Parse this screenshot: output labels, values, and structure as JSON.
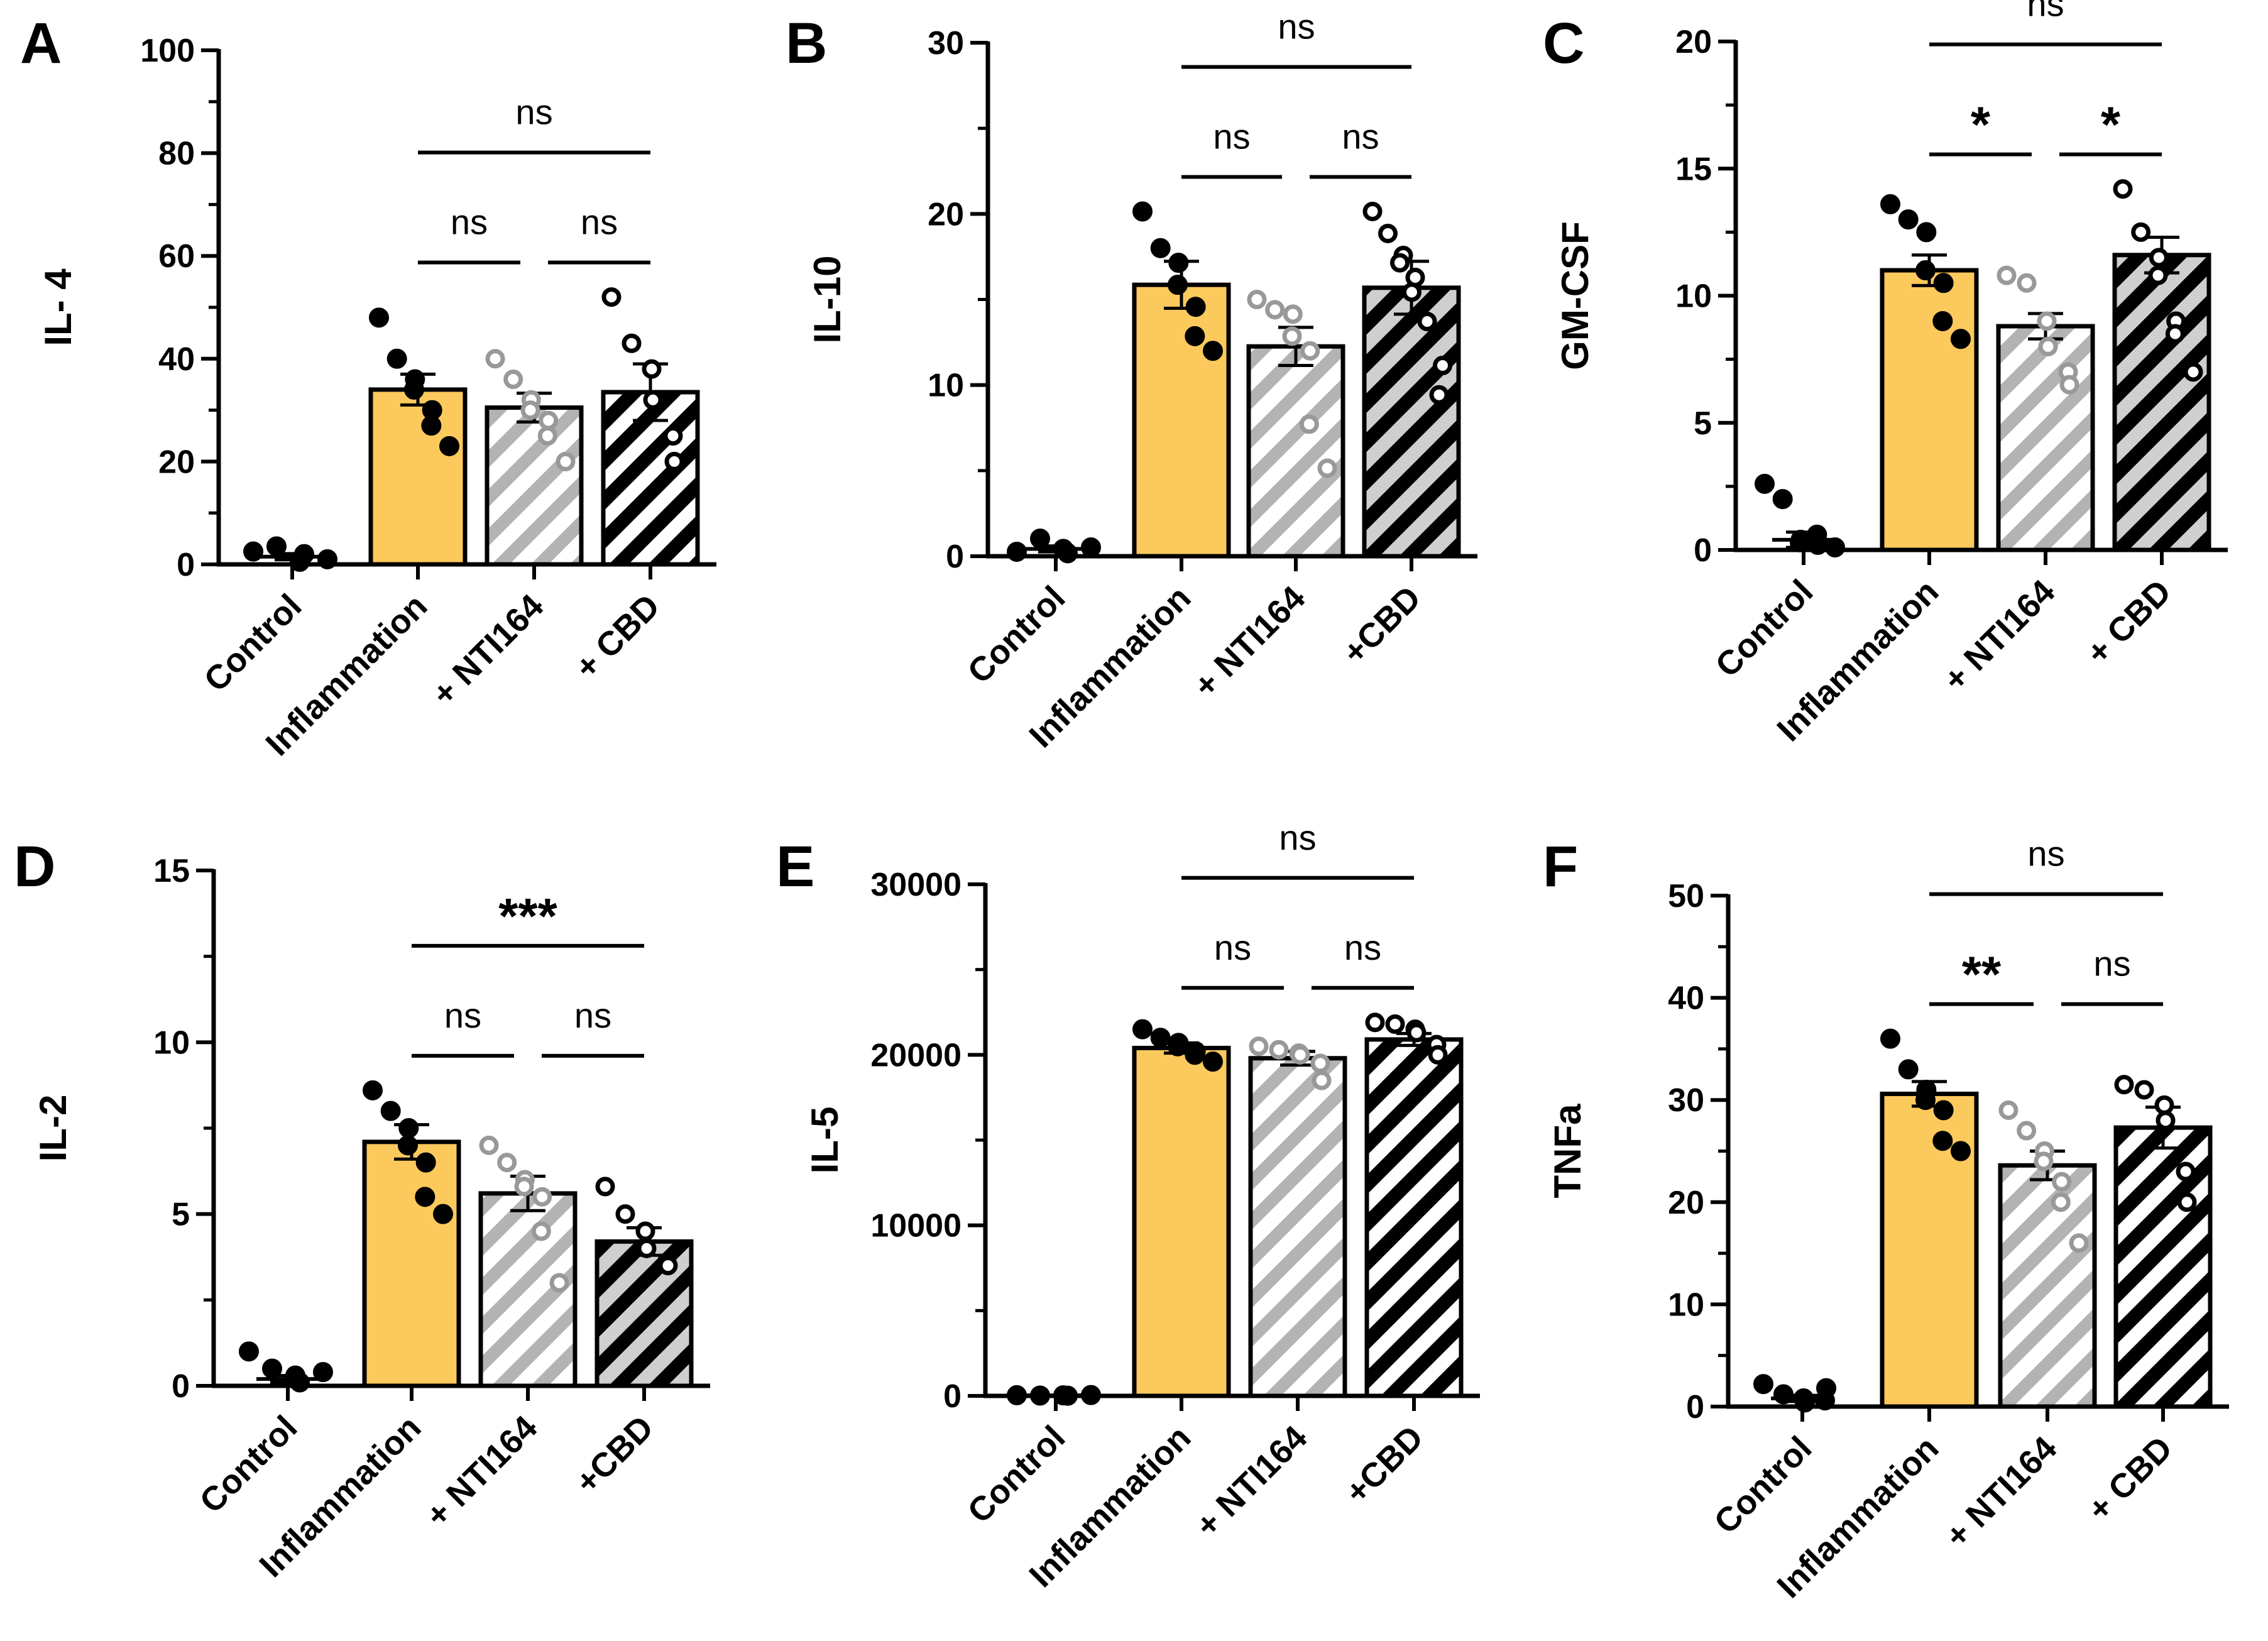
{
  "colors": {
    "inflammation_fill": "#fcc95d",
    "nti164_hatch": "#b3b3b3",
    "nti164_dots": "#999999",
    "cbd_hatch_dark": "#000000",
    "cbd_hatch_light": "#cfcfcf",
    "axis": "#000000"
  },
  "chart_data": [
    {
      "panel": "A",
      "type": "bar",
      "ylabel": "IL- 4",
      "ylim": [
        0,
        100
      ],
      "yticks": [
        "0",
        "20",
        "40",
        "60",
        "80",
        "100"
      ],
      "categories": [
        "Control",
        "Inflammation",
        "+ NTI164",
        "+ CBD"
      ],
      "values": [
        1.5,
        34,
        30.5,
        33.5
      ],
      "sem": [
        0.6,
        3,
        2.8,
        5.5
      ],
      "points": [
        [
          2.5,
          3.5,
          0.5,
          2,
          1
        ],
        [
          48,
          40,
          36,
          34,
          30,
          27,
          23
        ],
        [
          40,
          36,
          32,
          30,
          28,
          25,
          20
        ],
        [
          52,
          43,
          38,
          32,
          25,
          20
        ]
      ],
      "cbd_hatch": "dark",
      "significance": [
        {
          "from": 1,
          "to": 3,
          "label": "ns",
          "level": 2
        },
        {
          "from": 1,
          "to": 2,
          "label": "ns",
          "level": 1
        },
        {
          "from": 2,
          "to": 3,
          "label": "ns",
          "level": 1
        }
      ]
    },
    {
      "panel": "B",
      "type": "bar",
      "ylabel": "IL-10",
      "ylim": [
        0,
        35
      ],
      "yticks": [
        "0",
        "10",
        "20",
        "30"
      ],
      "categories": [
        "Control",
        "Inflammation",
        "+ NTI164",
        "+CBD"
      ],
      "values": [
        0.5,
        18.5,
        14.3,
        18.3
      ],
      "sem": [
        0.2,
        1.6,
        1.3,
        1.8
      ],
      "points": [
        [
          0.3,
          1.2,
          0.5,
          0.2,
          0.6
        ],
        [
          23.5,
          21,
          20,
          18.5,
          17,
          15,
          14
        ],
        [
          17.5,
          16.8,
          16.5,
          15,
          14,
          9,
          6
        ],
        [
          23.5,
          22,
          20.5,
          20,
          19,
          18,
          16,
          13,
          11
        ]
      ],
      "cbd_hatch": "light",
      "significance": [
        {
          "from": 1,
          "to": 3,
          "label": "ns",
          "level": 2
        },
        {
          "from": 1,
          "to": 2,
          "label": "ns",
          "level": 1
        },
        {
          "from": 2,
          "to": 3,
          "label": "ns",
          "level": 1
        }
      ]
    },
    {
      "panel": "C",
      "type": "bar",
      "ylabel": "GM-CSF",
      "ylim": [
        0,
        20
      ],
      "yticks": [
        "0",
        "5",
        "10",
        "15",
        "20"
      ],
      "categories": [
        "Control",
        "Inflammation",
        "+ NTI164",
        "+ CBD"
      ],
      "values": [
        0.4,
        11,
        8.8,
        11.6
      ],
      "sem": [
        0.3,
        0.6,
        0.5,
        0.7
      ],
      "points": [
        [
          2.6,
          2,
          0.4,
          0.3,
          0.2,
          0.6,
          0.1
        ],
        [
          13.6,
          13,
          12.5,
          11,
          10.5,
          9,
          8.3
        ],
        [
          10.8,
          10.5,
          9,
          8,
          7,
          6.5
        ],
        [
          14.2,
          12.5,
          11.5,
          10.8,
          9,
          8.5,
          7
        ]
      ],
      "cbd_hatch": "light",
      "significance": [
        {
          "from": 1,
          "to": 3,
          "label": "ns",
          "level": 2
        },
        {
          "from": 1,
          "to": 2,
          "label": "*",
          "level": 1
        },
        {
          "from": 2,
          "to": 3,
          "label": "*",
          "level": 1
        }
      ]
    },
    {
      "panel": "D",
      "type": "bar",
      "ylabel": "IL-2",
      "ylim": [
        0,
        15
      ],
      "yticks": [
        "0",
        "5",
        "10",
        "15"
      ],
      "categories": [
        "Control",
        "Inflammation",
        "+ NTI164",
        "+CBD"
      ],
      "values": [
        0.2,
        7.1,
        5.6,
        4.2
      ],
      "sem": [
        0.1,
        0.5,
        0.5,
        0.4
      ],
      "points": [
        [
          1,
          0.5,
          0.3,
          0.1,
          0.4
        ],
        [
          8.6,
          8,
          7.5,
          7,
          6.5,
          5.5,
          5
        ],
        [
          7,
          6.5,
          6,
          5.8,
          5.5,
          4.5,
          3
        ],
        [
          5.8,
          5,
          4.5,
          4,
          3.6,
          3.5
        ]
      ],
      "cbd_hatch": "light",
      "significance": [
        {
          "from": 1,
          "to": 3,
          "label": "***",
          "level": 2
        },
        {
          "from": 1,
          "to": 2,
          "label": "ns",
          "level": 1
        },
        {
          "from": 2,
          "to": 3,
          "label": "ns",
          "level": 1
        }
      ]
    },
    {
      "panel": "E",
      "type": "bar",
      "ylabel": "IL-5",
      "ylim": [
        0,
        30000
      ],
      "yticks": [
        "0",
        "10000",
        "20000",
        "30000"
      ],
      "categories": [
        "Control",
        "Inflammation",
        "+ NTI164",
        "+CBD"
      ],
      "values": [
        30,
        20400,
        19800,
        20900
      ],
      "sem": [
        10,
        300,
        400,
        350
      ],
      "points": [
        [
          40,
          20,
          30,
          10,
          50
        ],
        [
          21500,
          21000,
          20700,
          20500,
          20200,
          20000,
          19600
        ],
        [
          20500,
          20300,
          20100,
          20000,
          19500,
          18500
        ],
        [
          21900,
          21800,
          21500,
          21300,
          20600,
          20000
        ]
      ],
      "cbd_hatch": "dark",
      "significance": [
        {
          "from": 1,
          "to": 3,
          "label": "ns",
          "level": 2
        },
        {
          "from": 1,
          "to": 2,
          "label": "ns",
          "level": 1
        },
        {
          "from": 2,
          "to": 3,
          "label": "ns",
          "level": 1
        }
      ]
    },
    {
      "panel": "F",
      "type": "bar",
      "ylabel": "TNFa",
      "ylim": [
        0,
        50
      ],
      "yticks": [
        "0",
        "10",
        "20",
        "30",
        "40",
        "50"
      ],
      "categories": [
        "Control",
        "Inflammation",
        "+ NTI164",
        "+ CBD"
      ],
      "values": [
        0.8,
        30.6,
        23.6,
        27.3
      ],
      "sem": [
        0.3,
        1.2,
        1.4,
        2
      ],
      "points": [
        [
          2.2,
          1.2,
          0.8,
          0.4,
          0.6,
          1.8
        ],
        [
          36,
          33,
          31,
          30,
          29,
          26,
          25
        ],
        [
          29,
          27,
          25,
          24,
          22,
          20,
          16
        ],
        [
          31.5,
          31,
          29.5,
          28,
          23,
          20
        ]
      ],
      "cbd_hatch": "dark",
      "significance": [
        {
          "from": 1,
          "to": 3,
          "label": "ns",
          "level": 2
        },
        {
          "from": 1,
          "to": 2,
          "label": "**",
          "level": 1
        },
        {
          "from": 2,
          "to": 3,
          "label": "ns",
          "level": 1
        }
      ]
    }
  ]
}
